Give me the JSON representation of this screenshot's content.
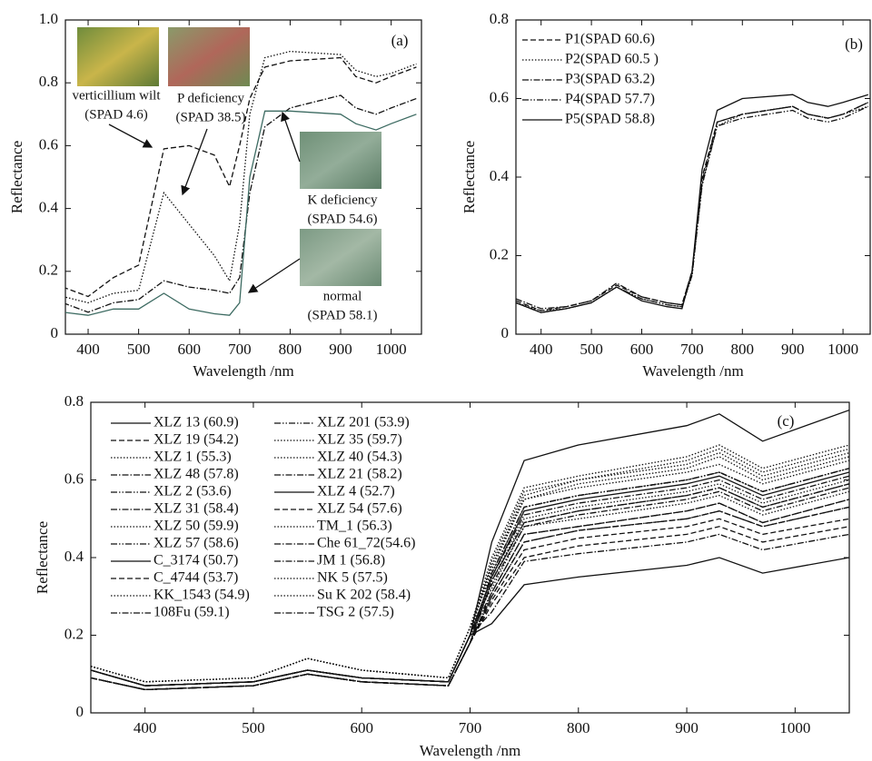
{
  "chart_data": [
    {
      "type": "line",
      "panel": "(a)",
      "x_label": "Wavelength /nm",
      "y_label": "Reflectance",
      "xlim": [
        355,
        1060
      ],
      "xticks": [
        400,
        500,
        600,
        700,
        800,
        900,
        1000
      ],
      "ylim": [
        0,
        1
      ],
      "yticks": [
        0,
        0.2,
        0.4,
        0.6,
        0.8,
        {
          "value": 1,
          "label": "1.0"
        }
      ],
      "x": [
        350,
        400,
        450,
        500,
        550,
        600,
        650,
        680,
        700,
        720,
        750,
        800,
        900,
        930,
        970,
        1000,
        1050
      ],
      "series": [
        {
          "color": "#111111",
          "style": "dashed",
          "values": [
            0.15,
            0.12,
            0.18,
            0.22,
            0.59,
            0.6,
            0.57,
            0.47,
            0.6,
            0.75,
            0.85,
            0.87,
            0.88,
            0.82,
            0.8,
            0.82,
            0.85
          ]
        },
        {
          "color": "#111111",
          "style": "dotted",
          "values": [
            0.12,
            0.1,
            0.13,
            0.14,
            0.45,
            0.35,
            0.25,
            0.17,
            0.35,
            0.7,
            0.88,
            0.9,
            0.89,
            0.84,
            0.82,
            0.83,
            0.86
          ]
        },
        {
          "color": "#111111",
          "style": "dashdot",
          "values": [
            0.1,
            0.07,
            0.1,
            0.11,
            0.17,
            0.15,
            0.14,
            0.13,
            0.18,
            0.45,
            0.66,
            0.72,
            0.76,
            0.72,
            0.7,
            0.72,
            0.75
          ]
        },
        {
          "color": "#3d6b62",
          "style": "solid",
          "values": [
            0.07,
            0.06,
            0.08,
            0.08,
            0.13,
            0.08,
            0.065,
            0.06,
            0.1,
            0.5,
            0.71,
            0.71,
            0.7,
            0.67,
            0.65,
            0.67,
            0.7
          ]
        }
      ],
      "annotations": [
        {
          "lines": [
            "verticillium wilt",
            "(SPAD 4.6)"
          ]
        },
        {
          "lines": [
            "P deficiency",
            "(SPAD 38.5)"
          ]
        },
        {
          "lines": [
            "K deficiency",
            "(SPAD 54.6)"
          ]
        },
        {
          "lines": [
            "normal",
            "(SPAD 58.1)"
          ]
        }
      ]
    },
    {
      "type": "line",
      "panel": "(b)",
      "x_label": "Wavelength /nm",
      "y_label": "Reflectance",
      "xlim": [
        350,
        1054
      ],
      "xticks": [
        400,
        500,
        600,
        700,
        800,
        900,
        1000
      ],
      "ylim": [
        0,
        0.8
      ],
      "yticks": [
        0,
        0.2,
        0.4,
        0.6,
        0.8
      ],
      "legend": "upper left",
      "legend_columns": 1,
      "x": [
        350,
        400,
        450,
        500,
        550,
        600,
        650,
        680,
        700,
        720,
        750,
        800,
        900,
        930,
        970,
        1000,
        1050
      ],
      "series": [
        {
          "name": "P1(SPAD 60.6)",
          "color": "#111111",
          "style": "dashed",
          "values": [
            0.085,
            0.06,
            0.07,
            0.085,
            0.125,
            0.095,
            0.08,
            0.075,
            0.16,
            0.4,
            0.54,
            0.56,
            0.58,
            0.56,
            0.55,
            0.56,
            0.59
          ]
        },
        {
          "name": "P2(SPAD 60.5 )",
          "color": "#111111",
          "style": "dotted",
          "values": [
            0.08,
            0.06,
            0.065,
            0.08,
            0.12,
            0.09,
            0.075,
            0.07,
            0.15,
            0.38,
            0.53,
            0.56,
            0.58,
            0.56,
            0.55,
            0.56,
            0.58
          ]
        },
        {
          "name": "P3(SPAD 63.2)",
          "color": "#111111",
          "style": "dashdot",
          "values": [
            0.09,
            0.065,
            0.07,
            0.085,
            0.13,
            0.095,
            0.08,
            0.075,
            0.16,
            0.39,
            0.54,
            0.56,
            0.58,
            0.56,
            0.55,
            0.56,
            0.59
          ]
        },
        {
          "name": "P4(SPAD 57.7)",
          "color": "#111111",
          "style": "dashdotdot",
          "values": [
            0.08,
            0.055,
            0.065,
            0.08,
            0.12,
            0.09,
            0.075,
            0.07,
            0.15,
            0.38,
            0.53,
            0.55,
            0.57,
            0.55,
            0.54,
            0.55,
            0.58
          ]
        },
        {
          "name": "P5(SPAD 58.8)",
          "color": "#111111",
          "style": "solid",
          "values": [
            0.08,
            0.055,
            0.065,
            0.08,
            0.12,
            0.085,
            0.07,
            0.065,
            0.16,
            0.42,
            0.57,
            0.6,
            0.61,
            0.59,
            0.58,
            0.59,
            0.61
          ]
        }
      ]
    },
    {
      "type": "line",
      "panel": "(c)",
      "x_label": "Wavelength /nm",
      "y_label": "Reflectance",
      "xlim": [
        350,
        1050
      ],
      "xticks": [
        400,
        500,
        600,
        700,
        800,
        900,
        1000
      ],
      "ylim": [
        0,
        0.8
      ],
      "yticks": [
        0,
        0.2,
        0.4,
        0.6,
        0.8
      ],
      "legend": "upper left",
      "legend_columns": 2,
      "x": [
        350,
        400,
        500,
        550,
        600,
        680,
        700,
        720,
        750,
        800,
        900,
        930,
        970,
        1050
      ],
      "series": [
        {
          "name": "XLZ 13 (60.9)",
          "color": "#111111",
          "style": "solid",
          "values": [
            0.11,
            0.07,
            0.08,
            0.11,
            0.09,
            0.08,
            0.2,
            0.44,
            0.65,
            0.69,
            0.74,
            0.77,
            0.7,
            0.78
          ]
        },
        {
          "name": "XLZ 19 (54.2)",
          "color": "#111111",
          "style": "dashed",
          "values": [
            0.09,
            0.06,
            0.07,
            0.1,
            0.08,
            0.07,
            0.18,
            0.3,
            0.44,
            0.47,
            0.5,
            0.52,
            0.48,
            0.53
          ]
        },
        {
          "name": "XLZ 1 (55.3)",
          "color": "#111111",
          "style": "dotted",
          "values": [
            0.12,
            0.08,
            0.09,
            0.14,
            0.11,
            0.09,
            0.22,
            0.37,
            0.55,
            0.58,
            0.62,
            0.64,
            0.59,
            0.65
          ]
        },
        {
          "name": "XLZ 48 (57.8)",
          "color": "#111111",
          "style": "dashdot",
          "values": [
            0.11,
            0.07,
            0.08,
            0.11,
            0.09,
            0.08,
            0.2,
            0.33,
            0.48,
            0.51,
            0.55,
            0.57,
            0.52,
            0.58
          ]
        },
        {
          "name": "XLZ 2 (53.6)",
          "color": "#111111",
          "style": "dashdotdot",
          "values": [
            0.09,
            0.06,
            0.07,
            0.1,
            0.08,
            0.07,
            0.18,
            0.36,
            0.53,
            0.56,
            0.6,
            0.62,
            0.57,
            0.63
          ]
        },
        {
          "name": "XLZ 31 (58.4)",
          "color": "#111111",
          "style": "dashdot",
          "values": [
            0.11,
            0.07,
            0.08,
            0.11,
            0.09,
            0.08,
            0.2,
            0.35,
            0.51,
            0.54,
            0.58,
            0.6,
            0.55,
            0.61
          ]
        },
        {
          "name": "XLZ 50 (59.9)",
          "color": "#111111",
          "style": "dotted",
          "values": [
            0.12,
            0.08,
            0.09,
            0.14,
            0.11,
            0.09,
            0.22,
            0.4,
            0.58,
            0.61,
            0.66,
            0.69,
            0.63,
            0.69
          ]
        },
        {
          "name": "XLZ 57 (58.6)",
          "color": "#111111",
          "style": "dashdotdot",
          "values": [
            0.09,
            0.06,
            0.07,
            0.1,
            0.08,
            0.07,
            0.18,
            0.36,
            0.53,
            0.56,
            0.6,
            0.62,
            0.57,
            0.63
          ]
        },
        {
          "name": "C_3174 (50.7)",
          "color": "#111111",
          "style": "solid",
          "values": [
            0.11,
            0.07,
            0.08,
            0.11,
            0.09,
            0.08,
            0.2,
            0.23,
            0.33,
            0.35,
            0.38,
            0.4,
            0.36,
            0.4
          ]
        },
        {
          "name": "C_4744 (53.7)",
          "color": "#111111",
          "style": "dashed",
          "values": [
            0.09,
            0.06,
            0.07,
            0.1,
            0.08,
            0.07,
            0.18,
            0.28,
            0.4,
            0.43,
            0.46,
            0.48,
            0.44,
            0.48
          ]
        },
        {
          "name": "KK_1543 (54.9)",
          "color": "#111111",
          "style": "dotted",
          "values": [
            0.12,
            0.08,
            0.09,
            0.14,
            0.11,
            0.09,
            0.22,
            0.38,
            0.56,
            0.6,
            0.64,
            0.67,
            0.61,
            0.67
          ]
        },
        {
          "name": "108Fu (59.1)",
          "color": "#111111",
          "style": "dashdot",
          "values": [
            0.11,
            0.07,
            0.08,
            0.11,
            0.09,
            0.08,
            0.2,
            0.31,
            0.46,
            0.48,
            0.52,
            0.54,
            0.49,
            0.55
          ]
        },
        {
          "name": "XLZ 201 (53.9)",
          "color": "#111111",
          "style": "dashdotdot",
          "values": [
            0.09,
            0.06,
            0.07,
            0.1,
            0.08,
            0.07,
            0.18,
            0.34,
            0.49,
            0.52,
            0.56,
            0.58,
            0.53,
            0.59
          ]
        },
        {
          "name": "XLZ 35 (59.7)",
          "color": "#111111",
          "style": "dotted",
          "values": [
            0.12,
            0.08,
            0.09,
            0.14,
            0.11,
            0.09,
            0.22,
            0.38,
            0.55,
            0.59,
            0.63,
            0.66,
            0.6,
            0.66
          ]
        },
        {
          "name": "XLZ 40 (54.3)",
          "color": "#111111",
          "style": "dotted",
          "values": [
            0.11,
            0.07,
            0.08,
            0.11,
            0.09,
            0.08,
            0.2,
            0.34,
            0.5,
            0.53,
            0.57,
            0.59,
            0.54,
            0.6
          ]
        },
        {
          "name": "XLZ 21 (58.2)",
          "color": "#111111",
          "style": "dashdot",
          "values": [
            0.09,
            0.06,
            0.07,
            0.1,
            0.08,
            0.07,
            0.18,
            0.31,
            0.46,
            0.48,
            0.52,
            0.54,
            0.49,
            0.55
          ]
        },
        {
          "name": "XLZ 4 (52.7)",
          "color": "#111111",
          "style": "solid",
          "values": [
            0.11,
            0.07,
            0.08,
            0.11,
            0.09,
            0.08,
            0.2,
            0.35,
            0.52,
            0.55,
            0.59,
            0.61,
            0.56,
            0.62
          ]
        },
        {
          "name": "XLZ 54 (57.6)",
          "color": "#111111",
          "style": "dashed",
          "values": [
            0.09,
            0.06,
            0.07,
            0.1,
            0.08,
            0.07,
            0.18,
            0.29,
            0.42,
            0.45,
            0.48,
            0.5,
            0.46,
            0.5
          ]
        },
        {
          "name": "TM_1 (56.3)",
          "color": "#111111",
          "style": "dotted",
          "values": [
            0.12,
            0.08,
            0.09,
            0.14,
            0.11,
            0.09,
            0.22,
            0.32,
            0.48,
            0.5,
            0.54,
            0.56,
            0.51,
            0.57
          ]
        },
        {
          "name": "Che 61_72(54.6)",
          "color": "#111111",
          "style": "dashdot",
          "values": [
            0.11,
            0.07,
            0.08,
            0.11,
            0.09,
            0.08,
            0.2,
            0.26,
            0.39,
            0.41,
            0.44,
            0.46,
            0.42,
            0.46
          ]
        },
        {
          "name": "JM 1 (56.8)",
          "color": "#111111",
          "style": "dashdot",
          "values": [
            0.09,
            0.06,
            0.07,
            0.1,
            0.08,
            0.07,
            0.18,
            0.3,
            0.44,
            0.47,
            0.5,
            0.52,
            0.48,
            0.53
          ]
        },
        {
          "name": "NK 5 (57.5)",
          "color": "#111111",
          "style": "dotted",
          "values": [
            0.12,
            0.08,
            0.09,
            0.14,
            0.11,
            0.09,
            0.22,
            0.36,
            0.53,
            0.56,
            0.6,
            0.62,
            0.57,
            0.63
          ]
        },
        {
          "name": "Su K 202 (58.4)",
          "color": "#111111",
          "style": "dotted",
          "values": [
            0.11,
            0.07,
            0.08,
            0.11,
            0.09,
            0.08,
            0.2,
            0.39,
            0.57,
            0.6,
            0.65,
            0.68,
            0.62,
            0.68
          ]
        },
        {
          "name": "TSG 2 (57.5)",
          "color": "#111111",
          "style": "dashdot",
          "values": [
            0.09,
            0.06,
            0.07,
            0.1,
            0.08,
            0.07,
            0.18,
            0.34,
            0.49,
            0.52,
            0.56,
            0.58,
            0.53,
            0.59
          ]
        }
      ]
    }
  ]
}
